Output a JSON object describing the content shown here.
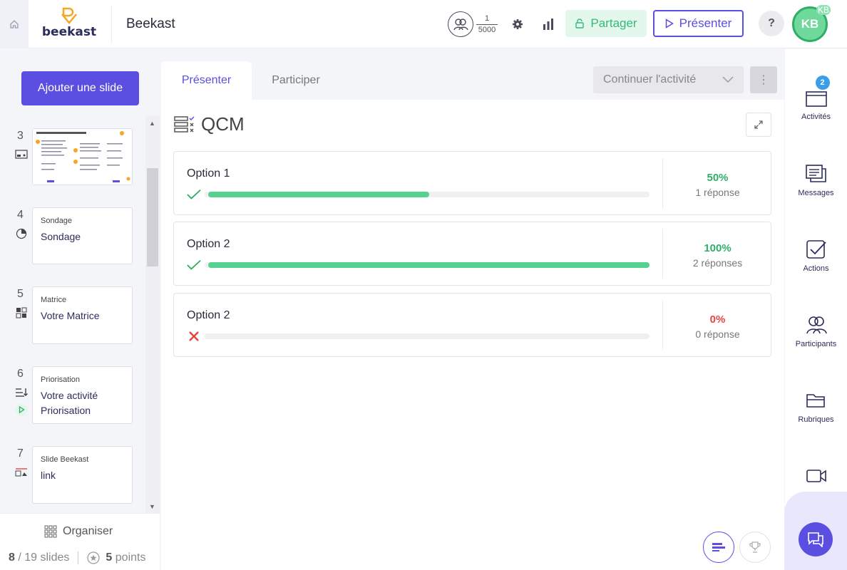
{
  "header": {
    "app_name": "Beekast",
    "logo_text": "beekast",
    "participants_current": "1",
    "participants_max": "5000",
    "share_label": "Partager",
    "present_label": "Présenter",
    "help_label": "?",
    "avatar_initials": "KB",
    "avatar_badge": "KB"
  },
  "left": {
    "add_slide_label": "Ajouter une slide",
    "slides": [
      {
        "num": "3",
        "kind": "",
        "name": "",
        "icon": "presentation-icon",
        "thumbnail": true
      },
      {
        "num": "4",
        "kind": "Sondage",
        "name": "Sondage",
        "icon": "pie-chart-icon"
      },
      {
        "num": "5",
        "kind": "Matrice",
        "name": "Votre Matrice",
        "icon": "matrix-icon"
      },
      {
        "num": "6",
        "kind": "Priorisation",
        "name": "Votre activité Priorisation",
        "icon": "sort-icon"
      },
      {
        "num": "7",
        "kind": "Slide Beekast",
        "name": "link",
        "icon": "slide-icon"
      }
    ],
    "organiser_label": "Organiser",
    "slides_current": "8",
    "slides_total": "/ 19 slides",
    "points_value": "5",
    "points_label": "points"
  },
  "main": {
    "tabs": [
      {
        "label": "Présenter",
        "active": true
      },
      {
        "label": "Participer",
        "active": false
      }
    ],
    "continue_label": "Continuer l'activité",
    "more_label": "⋮",
    "activity_title": "QCM",
    "options": [
      {
        "label": "Option 1",
        "correct": true,
        "percent": "50%",
        "fraction": 0.5,
        "responses": "1 réponse"
      },
      {
        "label": "Option 2",
        "correct": true,
        "percent": "100%",
        "fraction": 1.0,
        "responses": "2 réponses"
      },
      {
        "label": "Option 2",
        "correct": false,
        "percent": "0%",
        "fraction": 0.0,
        "responses": "0 réponse"
      }
    ]
  },
  "right_bar": {
    "items": [
      {
        "label": "Activités",
        "icon": "activities-icon",
        "badge": "2"
      },
      {
        "label": "Messages",
        "icon": "messages-icon"
      },
      {
        "label": "Actions",
        "icon": "actions-icon"
      },
      {
        "label": "Participants",
        "icon": "participants-icon"
      },
      {
        "label": "Rubriques",
        "icon": "folder-icon"
      },
      {
        "label": "Visio",
        "icon": "video-icon"
      }
    ]
  },
  "colors": {
    "accent": "#5a4fe0",
    "success": "#2fae67",
    "bar_green": "#55d28f",
    "danger": "#e84444"
  }
}
